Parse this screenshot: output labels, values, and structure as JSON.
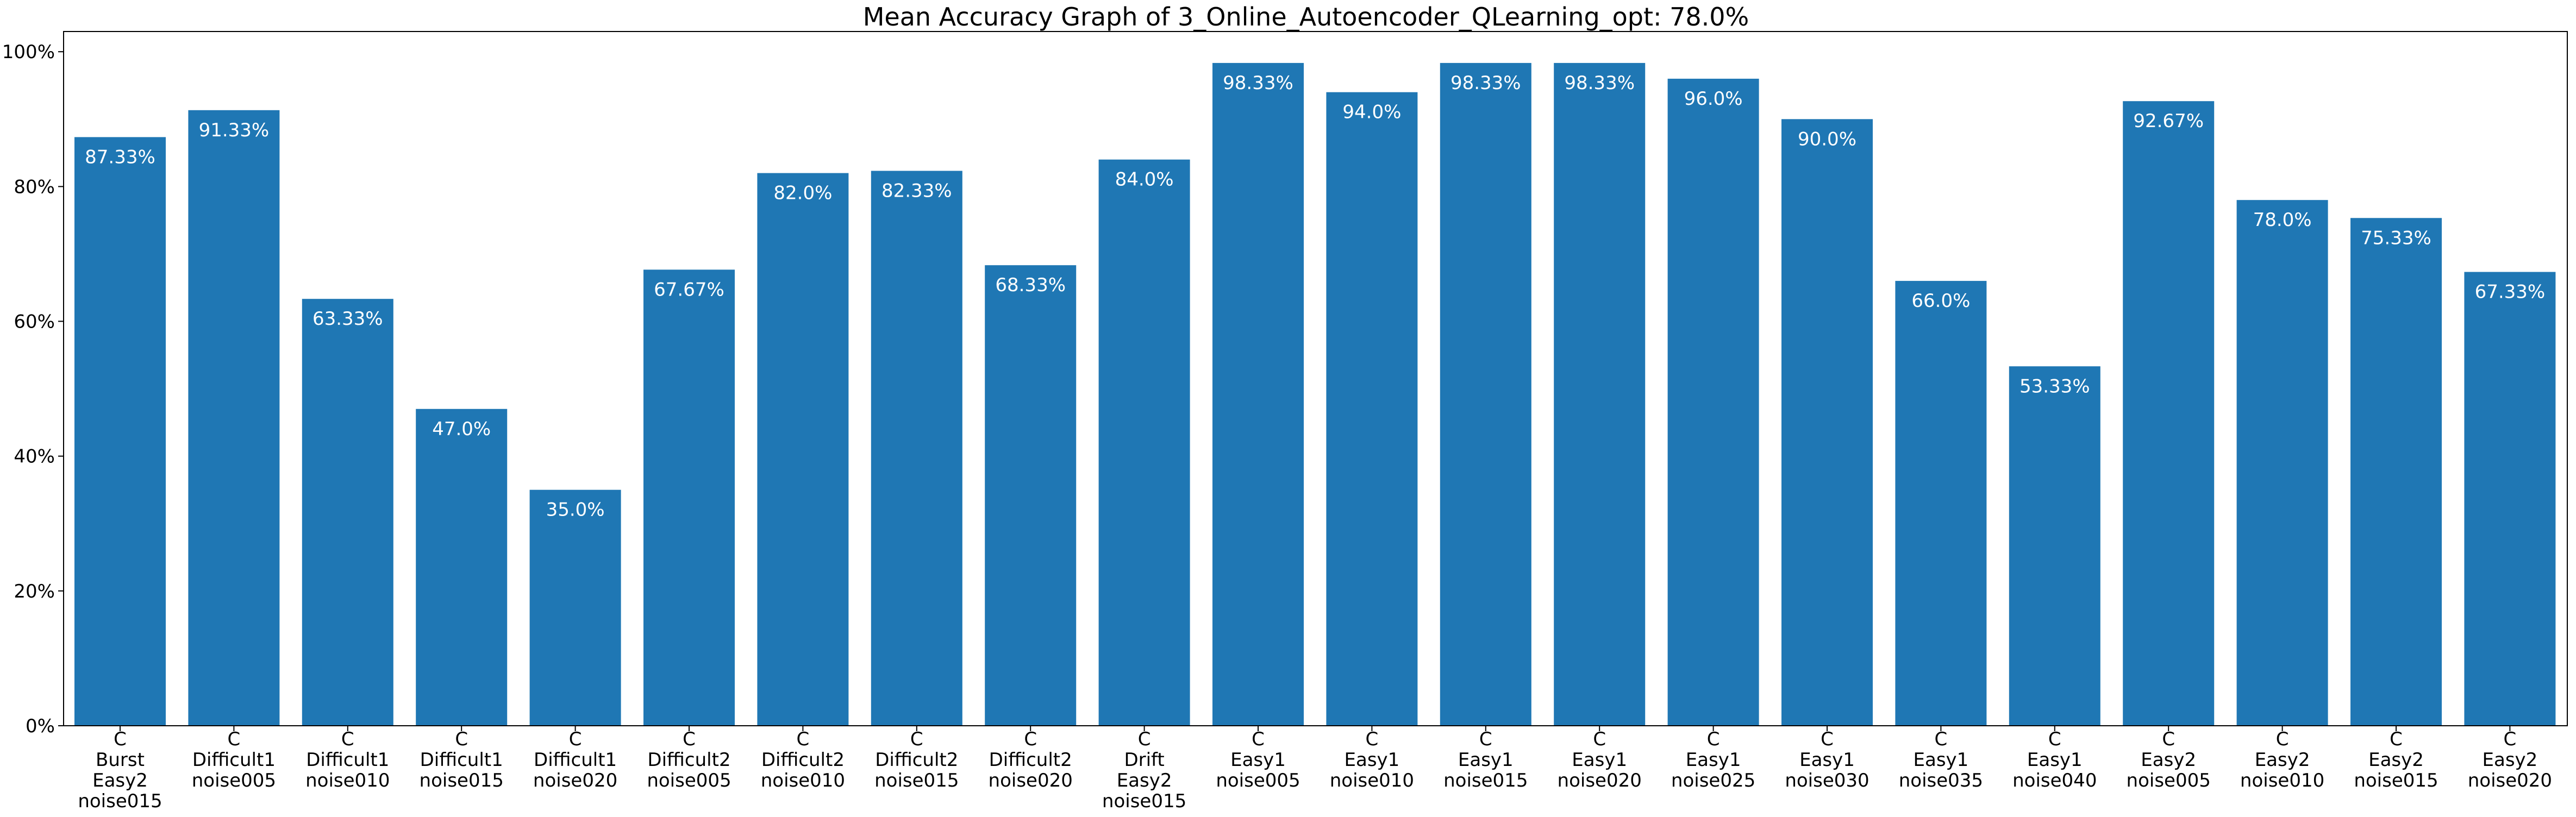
{
  "chart_data": {
    "type": "bar",
    "title": "Mean Accuracy Graph of 3_Online_Autoencoder_QLearning_opt: 78.0%",
    "xlabel": "",
    "ylabel": "",
    "ylim": [
      0,
      103
    ],
    "y_ticks": [
      0,
      20,
      40,
      60,
      80,
      100
    ],
    "y_tick_labels": [
      "0%",
      "20%",
      "40%",
      "60%",
      "80%",
      "100%"
    ],
    "grid": false,
    "bar_color": "#1f77b4",
    "value_label_color": "#ffffff",
    "categories": [
      "C\nBurst\nEasy2\nnoise015",
      "C\nDifficult1\nnoise005",
      "C\nDifficult1\nnoise010",
      "C\nDifficult1\nnoise015",
      "C\nDifficult1\nnoise020",
      "C\nDifficult2\nnoise005",
      "C\nDifficult2\nnoise010",
      "C\nDifficult2\nnoise015",
      "C\nDifficult2\nnoise020",
      "C\nDrift\nEasy2\nnoise015",
      "C\nEasy1\nnoise005",
      "C\nEasy1\nnoise010",
      "C\nEasy1\nnoise015",
      "C\nEasy1\nnoise020",
      "C\nEasy1\nnoise025",
      "C\nEasy1\nnoise030",
      "C\nEasy1\nnoise035",
      "C\nEasy1\nnoise040",
      "C\nEasy2\nnoise005",
      "C\nEasy2\nnoise010",
      "C\nEasy2\nnoise015",
      "C\nEasy2\nnoise020"
    ],
    "values": [
      87.33,
      91.33,
      63.33,
      47.0,
      35.0,
      67.67,
      82.0,
      82.33,
      68.33,
      84.0,
      98.33,
      94.0,
      98.33,
      98.33,
      96.0,
      90.0,
      66.0,
      53.33,
      92.67,
      78.0,
      75.33,
      67.33
    ],
    "value_labels": [
      "87.33%",
      "91.33%",
      "63.33%",
      "47.0%",
      "35.0%",
      "67.67%",
      "82.0%",
      "82.33%",
      "68.33%",
      "84.0%",
      "98.33%",
      "94.0%",
      "98.33%",
      "98.33%",
      "96.0%",
      "90.0%",
      "66.0%",
      "53.33%",
      "92.67%",
      "78.0%",
      "75.33%",
      "67.33%"
    ]
  }
}
